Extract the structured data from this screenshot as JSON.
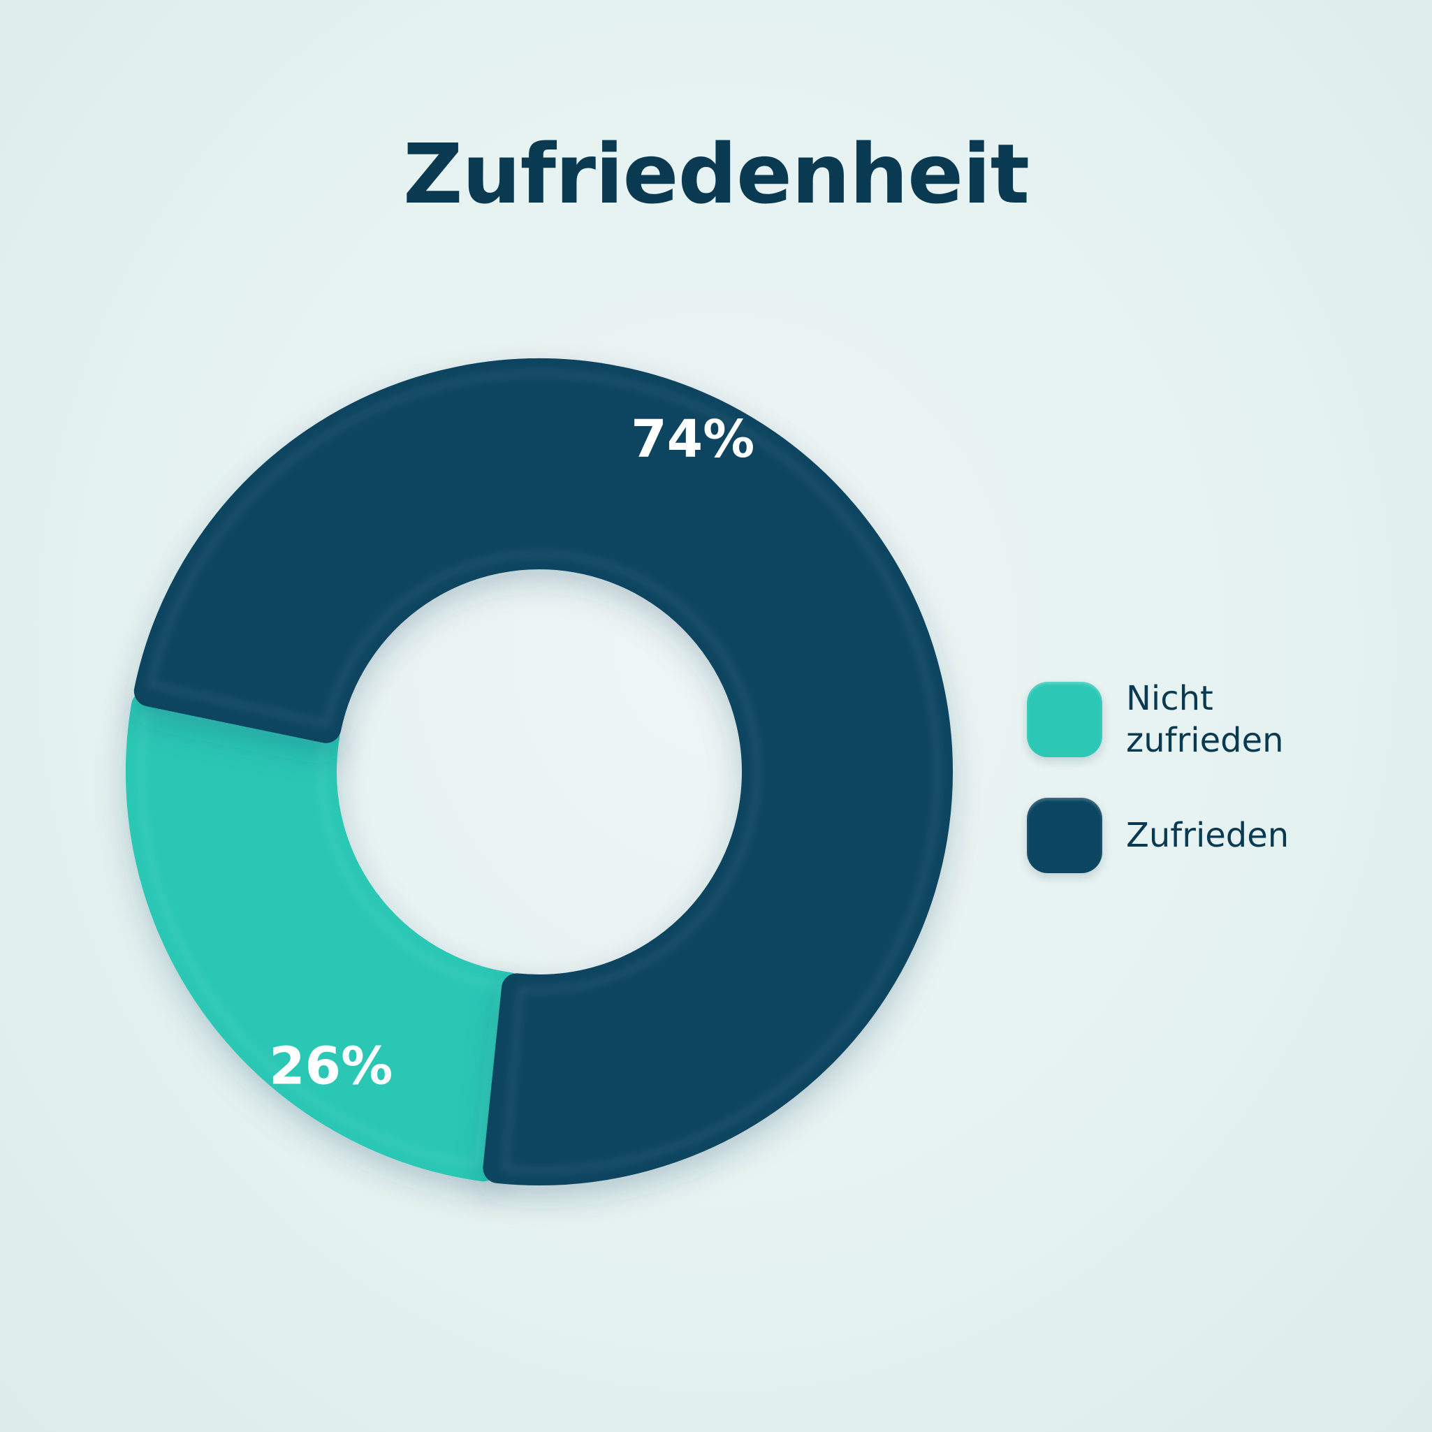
{
  "chart_data": {
    "type": "pie",
    "title": "Zufriedenheit",
    "donut": true,
    "slices": [
      {
        "label": "Zufrieden",
        "value": 74,
        "display": "74%",
        "color": "#0b4561"
      },
      {
        "label": "Nicht zufrieden",
        "value": 26,
        "display": "26%",
        "color": "#2cc7b5"
      }
    ],
    "legend": {
      "placement": "right",
      "items": [
        {
          "label": "Nicht zufrieden",
          "color": "#2cc7b5"
        },
        {
          "label": "Zufrieden",
          "color": "#0b4561"
        }
      ]
    }
  }
}
